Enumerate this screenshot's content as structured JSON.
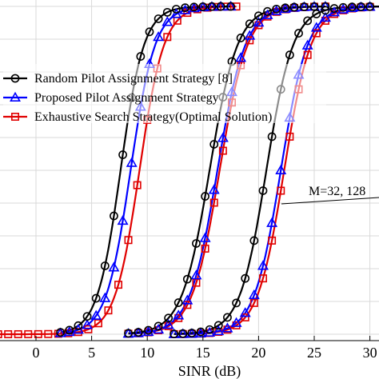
{
  "chart_data": {
    "type": "line",
    "xlabel": "SINR (dB)",
    "ylabel": "",
    "title": "",
    "xlim": [
      -4.5,
      30.5
    ],
    "ylim": [
      0,
      1
    ],
    "x_ticks": [
      0,
      5,
      10,
      15,
      20,
      25,
      30
    ],
    "x_tick_labels": [
      "0",
      "5",
      "10",
      "15",
      "20",
      "25",
      "30"
    ],
    "grid": true,
    "legend_position": "upper-left",
    "annotation": {
      "text": "M=32, 128"
    },
    "series": [
      {
        "name": "Random Pilot Assignment Strategy [8]",
        "color": "#000000",
        "marker": "circle"
      },
      {
        "name": "Proposed Pilot Assignment Strategy",
        "color": "#0000ff",
        "marker": "triangle"
      },
      {
        "name": "Exhaustive Search Strategy(Optimal Solution)",
        "color": "#e00000",
        "marker": "square"
      }
    ],
    "curves": [
      {
        "series": 0,
        "group": 1,
        "midpoint": 7.6,
        "scale": 1.05,
        "x_start": 2.2,
        "x_end": 17.5,
        "x": [
          2.2,
          3.0,
          3.8,
          4.6,
          5.4,
          6.2,
          7.0,
          7.8,
          8.6,
          9.4,
          10.2,
          11.0,
          11.8,
          12.6,
          13.4,
          14.2,
          15.0,
          15.8,
          16.6,
          17.5
        ]
      },
      {
        "series": 1,
        "group": 1,
        "midpoint": 8.5,
        "scale": 1.1,
        "x_start": 2.2,
        "x_end": 17.5,
        "x": [
          2.2,
          3.0,
          3.8,
          4.6,
          5.4,
          6.2,
          7.0,
          7.8,
          8.6,
          9.4,
          10.2,
          11.0,
          11.8,
          12.6,
          13.4,
          14.2,
          15.0,
          15.8,
          16.6,
          17.5
        ]
      },
      {
        "series": 2,
        "group": 1,
        "midpoint": 9.3,
        "scale": 1.1,
        "x_start": -4.3,
        "x_end": 18.0,
        "x": [
          -4.3,
          -3.4,
          -2.5,
          -1.6,
          -0.7,
          0.2,
          1.1,
          2.0,
          2.9,
          3.8,
          4.7,
          5.6,
          6.5,
          7.4,
          8.3,
          9.1,
          10.0,
          10.9,
          11.8,
          12.7,
          13.6,
          14.5,
          15.4,
          16.3,
          17.2,
          18.0
        ]
      },
      {
        "series": 0,
        "group": 2,
        "midpoint": 15.6,
        "scale": 1.25,
        "x_start": 8.3,
        "x_end": 26.0,
        "x": [
          8.3,
          9.2,
          10.1,
          11.0,
          11.9,
          12.8,
          13.6,
          14.4,
          15.2,
          16.0,
          16.8,
          17.6,
          18.4,
          19.2,
          20.0,
          20.8,
          21.6,
          22.4,
          23.2,
          24.1,
          25.0,
          26.0
        ]
      },
      {
        "series": 1,
        "group": 2,
        "midpoint": 16.3,
        "scale": 1.25,
        "x_start": 8.3,
        "x_end": 26.0,
        "x": [
          8.3,
          9.2,
          10.1,
          11.0,
          11.9,
          12.8,
          13.6,
          14.4,
          15.2,
          16.0,
          16.8,
          17.6,
          18.4,
          19.2,
          20.0,
          20.8,
          21.6,
          22.4,
          23.2,
          24.1,
          25.0,
          26.0
        ]
      },
      {
        "series": 2,
        "group": 2,
        "midpoint": 16.5,
        "scale": 1.25,
        "x_start": 8.3,
        "x_end": 26.0,
        "x": [
          8.3,
          9.2,
          10.1,
          11.0,
          11.9,
          12.8,
          13.6,
          14.4,
          15.2,
          16.0,
          16.8,
          17.6,
          18.4,
          19.2,
          20.0,
          20.8,
          21.6,
          22.4,
          23.2,
          24.1,
          25.0,
          26.0
        ]
      },
      {
        "series": 0,
        "group": 3,
        "midpoint": 20.7,
        "scale": 1.2,
        "x_start": 12.4,
        "x_end": 31.0,
        "x": [
          12.4,
          13.2,
          14.0,
          14.8,
          15.6,
          16.4,
          17.2,
          18.0,
          18.8,
          19.6,
          20.4,
          21.2,
          22.0,
          22.8,
          23.6,
          24.4,
          25.2,
          26.0,
          26.8,
          27.6,
          28.4,
          29.2,
          30.0
        ]
      },
      {
        "series": 1,
        "group": 3,
        "midpoint": 22.0,
        "scale": 1.2,
        "x_start": 12.4,
        "x_end": 31.0,
        "x": [
          12.4,
          13.2,
          14.0,
          14.8,
          15.6,
          16.4,
          17.2,
          18.0,
          18.8,
          19.6,
          20.4,
          21.2,
          22.0,
          22.8,
          23.6,
          24.4,
          25.2,
          26.0,
          26.8,
          27.6,
          28.4,
          29.2,
          30.0
        ]
      },
      {
        "series": 2,
        "group": 3,
        "midpoint": 22.3,
        "scale": 1.2,
        "x_start": 12.4,
        "x_end": 31.0,
        "x": [
          12.4,
          13.2,
          14.0,
          14.8,
          15.6,
          16.4,
          17.2,
          18.0,
          18.8,
          19.6,
          20.4,
          21.2,
          22.0,
          22.8,
          23.6,
          24.4,
          25.2,
          26.0,
          26.8,
          27.6,
          28.4,
          29.2,
          30.0
        ]
      }
    ]
  }
}
